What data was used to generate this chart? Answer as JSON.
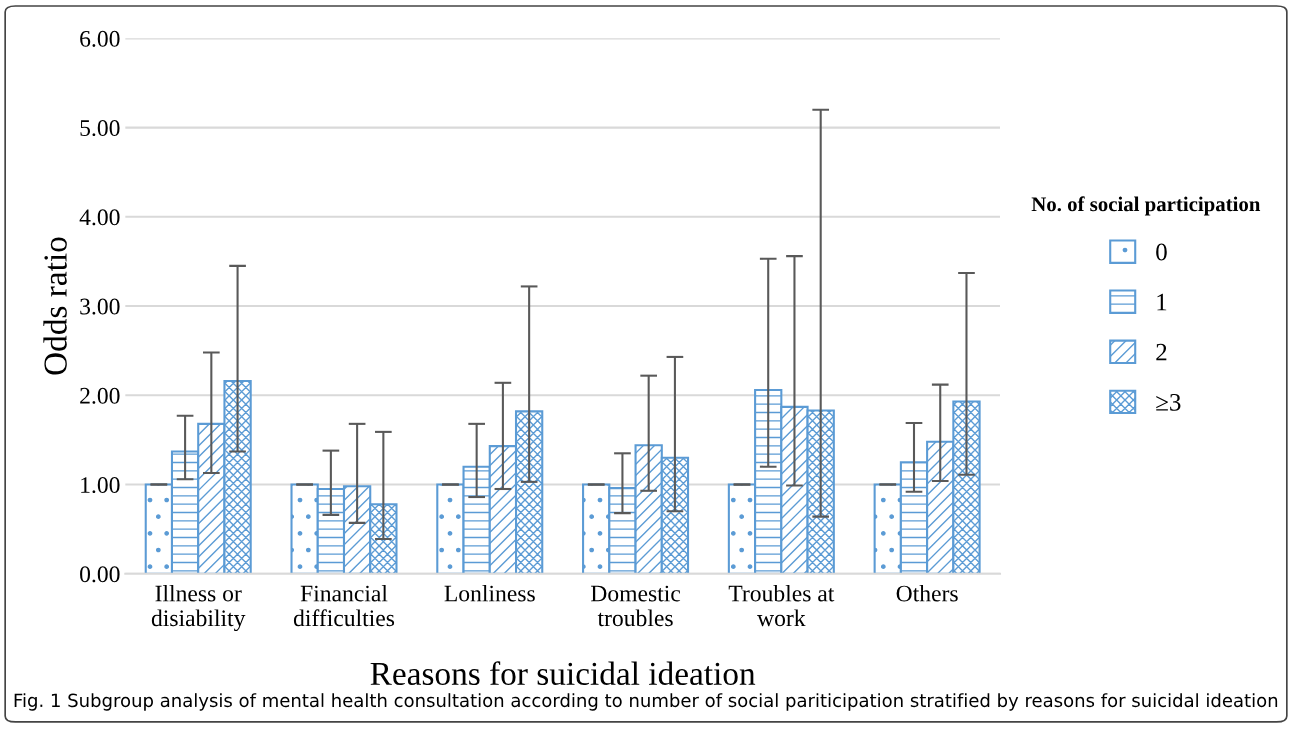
{
  "chart_data": {
    "type": "bar",
    "xlabel": "Reasons for suicidal ideation",
    "ylabel": "Odds ratio",
    "legend_title": "No. of social participation",
    "categories": [
      "Illness or\ndisiability",
      "Financial\ndifficulties",
      "Lonliness",
      "Domestic\ntroubles",
      "Troubles at\nwork",
      "Others"
    ],
    "series": [
      {
        "name": "0",
        "color": "#5b9bd5",
        "values": [
          1.0,
          1.0,
          1.0,
          1.0,
          1.0,
          1.0
        ],
        "errors": [
          [
            1.0,
            1.0
          ],
          [
            1.0,
            1.0
          ],
          [
            1.0,
            1.0
          ],
          [
            1.0,
            1.0
          ],
          [
            1.0,
            1.0
          ],
          [
            1.0,
            1.0
          ]
        ]
      },
      {
        "name": "1",
        "color": "#5b9bd5",
        "values": [
          1.37,
          0.95,
          1.2,
          0.96,
          2.06,
          1.25
        ],
        "errors": [
          [
            1.06,
            1.77
          ],
          [
            0.66,
            1.38
          ],
          [
            0.86,
            1.68
          ],
          [
            0.68,
            1.35
          ],
          [
            1.2,
            3.53
          ],
          [
            0.92,
            1.69
          ]
        ]
      },
      {
        "name": "2",
        "color": "#5b9bd5",
        "values": [
          1.68,
          0.98,
          1.43,
          1.44,
          1.87,
          1.48
        ],
        "errors": [
          [
            1.13,
            2.48
          ],
          [
            0.57,
            1.68
          ],
          [
            0.95,
            2.14
          ],
          [
            0.93,
            2.22
          ],
          [
            0.99,
            3.56
          ],
          [
            1.04,
            2.12
          ]
        ]
      },
      {
        "name": "≥3",
        "color": "#5b9bd5",
        "values": [
          2.16,
          0.78,
          1.82,
          1.3,
          1.83,
          1.93
        ],
        "errors": [
          [
            1.37,
            3.45
          ],
          [
            0.39,
            1.59
          ],
          [
            1.03,
            3.22
          ],
          [
            0.7,
            2.43
          ],
          [
            0.64,
            5.2
          ],
          [
            1.11,
            3.37
          ]
        ]
      }
    ],
    "ylim": [
      0,
      6
    ],
    "yticks": [
      {
        "value": 0,
        "label": "0.00"
      },
      {
        "value": 1,
        "label": "1.00"
      },
      {
        "value": 2,
        "label": "2.00"
      },
      {
        "value": 3,
        "label": "3.00"
      },
      {
        "value": 4,
        "label": "4.00"
      },
      {
        "value": 5,
        "label": "5.00"
      },
      {
        "value": 6,
        "label": "6.00"
      }
    ],
    "grid": "y",
    "legend": "right",
    "annotations": [
      "Fig. 1 Subgroup analysis of mental health consultation according to number of social pariticipation stratified by reasons for suicidal ideation"
    ]
  }
}
